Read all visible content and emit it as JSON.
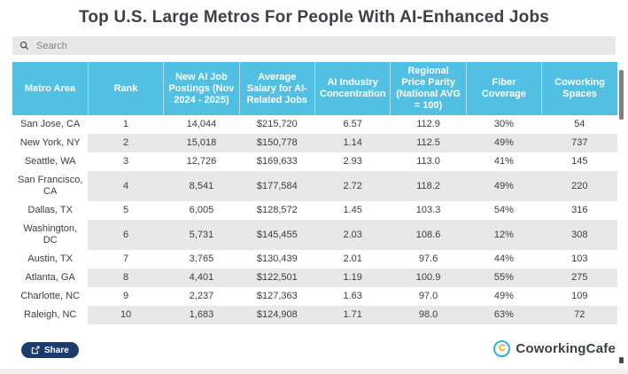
{
  "title": "Top U.S. Large Metros For People With AI-Enhanced Jobs",
  "search": {
    "placeholder": "Search"
  },
  "table": {
    "columns": [
      "Metro Area",
      "Rank",
      "New AI Job Postings (Nov 2024 - 2025)",
      "Average Salary for AI-Related Jobs",
      "AI Industry Concentration",
      "Regional Price Parity (National AVG = 100)",
      "Fiber Coverage",
      "Coworking Spaces"
    ],
    "rows": [
      [
        "San Jose, CA",
        "1",
        "14,044",
        "$215,720",
        "6.57",
        "112.9",
        "30%",
        "54"
      ],
      [
        "New York, NY",
        "2",
        "15,018",
        "$150,778",
        "1.14",
        "112.5",
        "49%",
        "737"
      ],
      [
        "Seattle, WA",
        "3",
        "12,726",
        "$169,633",
        "2.93",
        "113.0",
        "41%",
        "145"
      ],
      [
        "San Francisco, CA",
        "4",
        "8,541",
        "$177,584",
        "2.72",
        "118.2",
        "49%",
        "220"
      ],
      [
        "Dallas, TX",
        "5",
        "6,005",
        "$128,572",
        "1.45",
        "103.3",
        "54%",
        "316"
      ],
      [
        "Washington, DC",
        "6",
        "5,731",
        "$145,455",
        "2.03",
        "108.6",
        "12%",
        "308"
      ],
      [
        "Austin, TX",
        "7",
        "3,765",
        "$130,439",
        "2.01",
        "97.6",
        "44%",
        "103"
      ],
      [
        "Atlanta, GA",
        "8",
        "4,401",
        "$122,501",
        "1.19",
        "100.9",
        "55%",
        "275"
      ],
      [
        "Charlotte, NC",
        "9",
        "2,237",
        "$127,363",
        "1.63",
        "97.0",
        "49%",
        "109"
      ],
      [
        "Raleigh, NC",
        "10",
        "1,683",
        "$124,908",
        "1.71",
        "98.0",
        "63%",
        "72"
      ]
    ]
  },
  "footer": {
    "share_label": "Share",
    "brand": "CoworkingCafe",
    "brand_initial": "C"
  },
  "colors": {
    "header_bg": "#52c0e3",
    "row_alt_bg": "#e8e8e8",
    "title_text": "#3f3f46",
    "share_bg": "#1b3a6e",
    "logo_ring": "#2bb0ea",
    "logo_letter": "#f0a50a"
  }
}
